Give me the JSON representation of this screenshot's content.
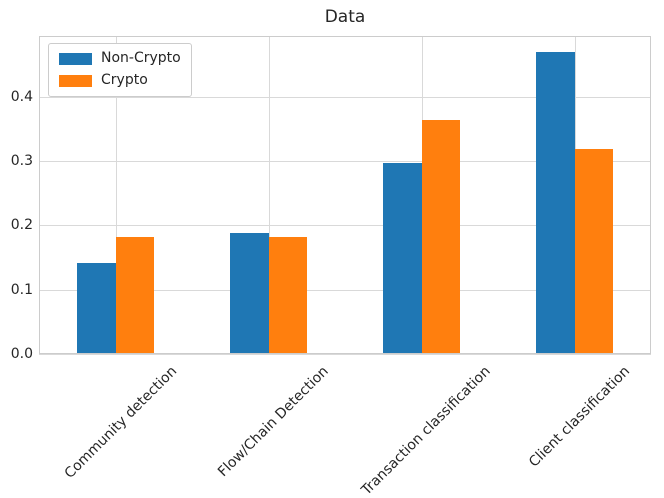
{
  "chart_data": {
    "type": "bar",
    "title": "Data",
    "categories": [
      "Community detection",
      "Flow/Chain Detection",
      "Transaction classification",
      "Client classification"
    ],
    "series": [
      {
        "name": "Non-Crypto",
        "color": "#1f77b4",
        "values": [
          0.141,
          0.188,
          0.297,
          0.469
        ]
      },
      {
        "name": "Crypto",
        "color": "#ff7f0e",
        "values": [
          0.181,
          0.181,
          0.364,
          0.318
        ]
      }
    ],
    "xlabel": "",
    "ylabel": "",
    "yticks": [
      "0.0",
      "0.1",
      "0.2",
      "0.3",
      "0.4"
    ],
    "ytick_values": [
      0,
      0.1,
      0.2,
      0.3,
      0.4
    ],
    "ylim": [
      0,
      0.494
    ],
    "grid": true,
    "legend_position": "upper left",
    "bar_width_fraction": 0.25,
    "x_tick_rotation_deg": 45,
    "colors": {
      "grid": "#d9d9d9",
      "axis_frame": "#cccccc",
      "text": "#262626",
      "background": "#ffffff"
    }
  }
}
